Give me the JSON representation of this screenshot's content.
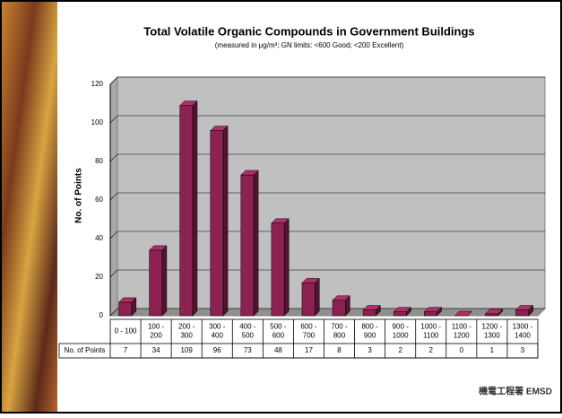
{
  "chart_data": {
    "type": "bar3d",
    "title": "Total Volatile Organic Compounds in Government Buildings",
    "subtitle": "(measured in μg/m³; GN limits: <600 Good; <200 Excellent)",
    "y_label": "No. of Points",
    "table_row_label": "No. of Points",
    "categories": [
      "0 - 100",
      "100 - 200",
      "200 - 300",
      "300 - 400",
      "400 - 500",
      "500 - 600",
      "600 - 700",
      "700 - 800",
      "800 - 900",
      "900 - 1000",
      "1000 - 1100",
      "1100 - 1200",
      "1200 - 1300",
      "1300 - 1400"
    ],
    "values": [
      7,
      34,
      109,
      96,
      73,
      48,
      17,
      8,
      3,
      2,
      2,
      0,
      1,
      3
    ],
    "color": "#8b2252",
    "ylim": [
      0,
      120
    ],
    "yticks": [
      0,
      20,
      40,
      60,
      80,
      100,
      120
    ],
    "grid": true
  },
  "footer": "機電工程署 EMSD"
}
